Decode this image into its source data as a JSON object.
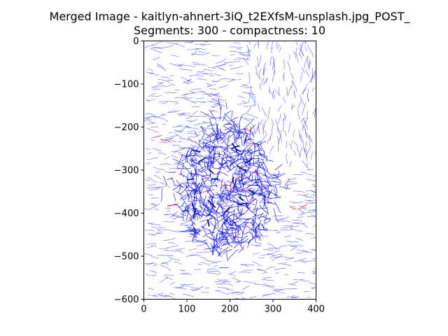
{
  "chart_data": {
    "type": "line",
    "title_line1": "Merged Image - kaitlyn-ahnert-3iQ_t2EXfsM-unsplash.jpg_POST_",
    "title_line2": "Segments: 300 - compactness: 10",
    "xlabel": "",
    "ylabel": "",
    "xlim": [
      0,
      400
    ],
    "ylim": [
      -600,
      0
    ],
    "x_ticks": [
      0,
      100,
      200,
      300,
      400
    ],
    "y_ticks": [
      0,
      -100,
      -200,
      -300,
      -400,
      -500,
      -600
    ],
    "grid": false,
    "legend": "none",
    "colors": {
      "primary_series": "#0000ff",
      "secondary_series": "#ff0000"
    }
  }
}
